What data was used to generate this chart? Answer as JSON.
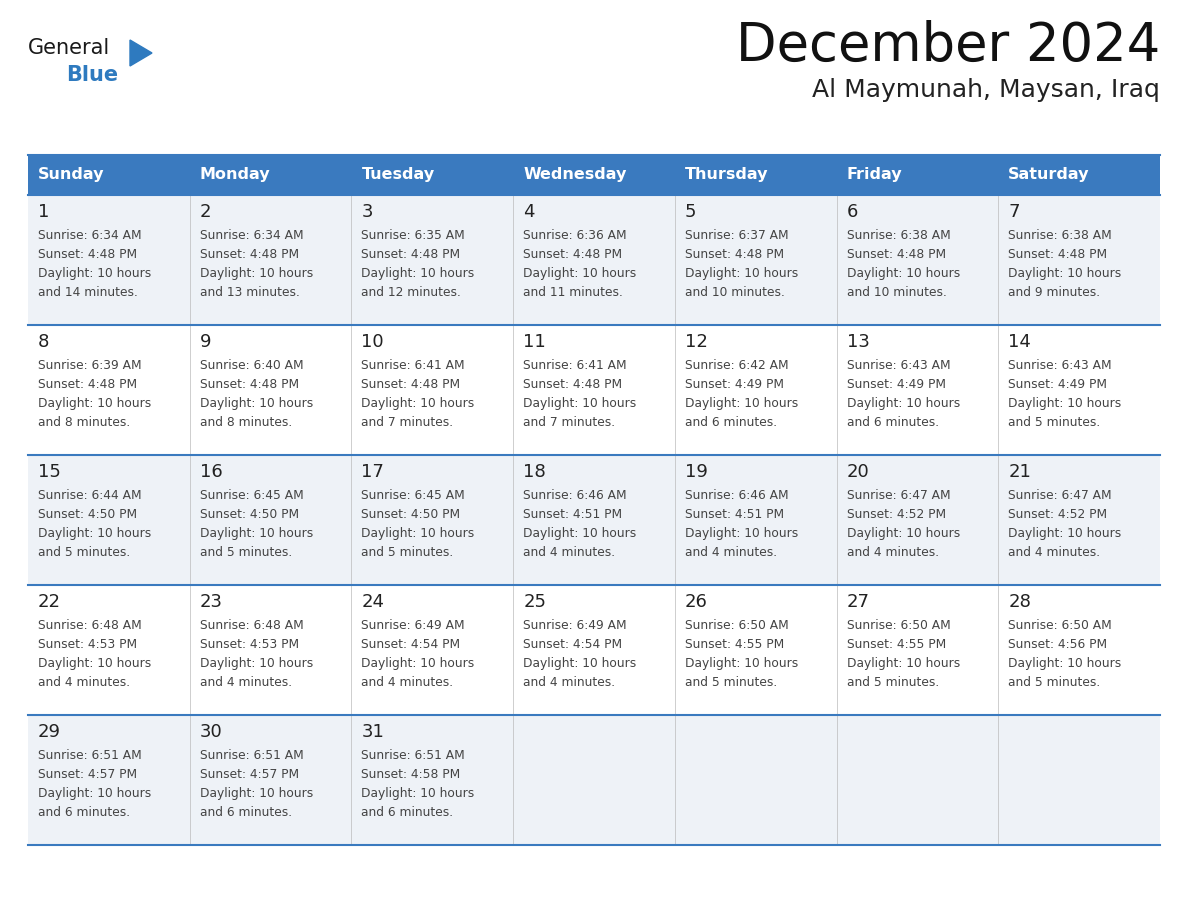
{
  "title": "December 2024",
  "subtitle": "Al Maymunah, Maysan, Iraq",
  "header_bg": "#3a7abf",
  "header_text": "#ffffff",
  "day_names": [
    "Sunday",
    "Monday",
    "Tuesday",
    "Wednesday",
    "Thursday",
    "Friday",
    "Saturday"
  ],
  "row_bg_odd": "#eef2f7",
  "row_bg_even": "#ffffff",
  "border_color": "#3a7abf",
  "text_color": "#444444",
  "date_color": "#222222",
  "logo_general_color": "#1a1a1a",
  "logo_blue_color": "#2e7abf",
  "weeks": [
    [
      {
        "day": 1,
        "sunrise": "6:34 AM",
        "sunset": "4:48 PM",
        "daylight": "10 hours and 14 minutes."
      },
      {
        "day": 2,
        "sunrise": "6:34 AM",
        "sunset": "4:48 PM",
        "daylight": "10 hours and 13 minutes."
      },
      {
        "day": 3,
        "sunrise": "6:35 AM",
        "sunset": "4:48 PM",
        "daylight": "10 hours and 12 minutes."
      },
      {
        "day": 4,
        "sunrise": "6:36 AM",
        "sunset": "4:48 PM",
        "daylight": "10 hours and 11 minutes."
      },
      {
        "day": 5,
        "sunrise": "6:37 AM",
        "sunset": "4:48 PM",
        "daylight": "10 hours and 10 minutes."
      },
      {
        "day": 6,
        "sunrise": "6:38 AM",
        "sunset": "4:48 PM",
        "daylight": "10 hours and 10 minutes."
      },
      {
        "day": 7,
        "sunrise": "6:38 AM",
        "sunset": "4:48 PM",
        "daylight": "10 hours and 9 minutes."
      }
    ],
    [
      {
        "day": 8,
        "sunrise": "6:39 AM",
        "sunset": "4:48 PM",
        "daylight": "10 hours and 8 minutes."
      },
      {
        "day": 9,
        "sunrise": "6:40 AM",
        "sunset": "4:48 PM",
        "daylight": "10 hours and 8 minutes."
      },
      {
        "day": 10,
        "sunrise": "6:41 AM",
        "sunset": "4:48 PM",
        "daylight": "10 hours and 7 minutes."
      },
      {
        "day": 11,
        "sunrise": "6:41 AM",
        "sunset": "4:48 PM",
        "daylight": "10 hours and 7 minutes."
      },
      {
        "day": 12,
        "sunrise": "6:42 AM",
        "sunset": "4:49 PM",
        "daylight": "10 hours and 6 minutes."
      },
      {
        "day": 13,
        "sunrise": "6:43 AM",
        "sunset": "4:49 PM",
        "daylight": "10 hours and 6 minutes."
      },
      {
        "day": 14,
        "sunrise": "6:43 AM",
        "sunset": "4:49 PM",
        "daylight": "10 hours and 5 minutes."
      }
    ],
    [
      {
        "day": 15,
        "sunrise": "6:44 AM",
        "sunset": "4:50 PM",
        "daylight": "10 hours and 5 minutes."
      },
      {
        "day": 16,
        "sunrise": "6:45 AM",
        "sunset": "4:50 PM",
        "daylight": "10 hours and 5 minutes."
      },
      {
        "day": 17,
        "sunrise": "6:45 AM",
        "sunset": "4:50 PM",
        "daylight": "10 hours and 5 minutes."
      },
      {
        "day": 18,
        "sunrise": "6:46 AM",
        "sunset": "4:51 PM",
        "daylight": "10 hours and 4 minutes."
      },
      {
        "day": 19,
        "sunrise": "6:46 AM",
        "sunset": "4:51 PM",
        "daylight": "10 hours and 4 minutes."
      },
      {
        "day": 20,
        "sunrise": "6:47 AM",
        "sunset": "4:52 PM",
        "daylight": "10 hours and 4 minutes."
      },
      {
        "day": 21,
        "sunrise": "6:47 AM",
        "sunset": "4:52 PM",
        "daylight": "10 hours and 4 minutes."
      }
    ],
    [
      {
        "day": 22,
        "sunrise": "6:48 AM",
        "sunset": "4:53 PM",
        "daylight": "10 hours and 4 minutes."
      },
      {
        "day": 23,
        "sunrise": "6:48 AM",
        "sunset": "4:53 PM",
        "daylight": "10 hours and 4 minutes."
      },
      {
        "day": 24,
        "sunrise": "6:49 AM",
        "sunset": "4:54 PM",
        "daylight": "10 hours and 4 minutes."
      },
      {
        "day": 25,
        "sunrise": "6:49 AM",
        "sunset": "4:54 PM",
        "daylight": "10 hours and 4 minutes."
      },
      {
        "day": 26,
        "sunrise": "6:50 AM",
        "sunset": "4:55 PM",
        "daylight": "10 hours and 5 minutes."
      },
      {
        "day": 27,
        "sunrise": "6:50 AM",
        "sunset": "4:55 PM",
        "daylight": "10 hours and 5 minutes."
      },
      {
        "day": 28,
        "sunrise": "6:50 AM",
        "sunset": "4:56 PM",
        "daylight": "10 hours and 5 minutes."
      }
    ],
    [
      {
        "day": 29,
        "sunrise": "6:51 AM",
        "sunset": "4:57 PM",
        "daylight": "10 hours and 6 minutes."
      },
      {
        "day": 30,
        "sunrise": "6:51 AM",
        "sunset": "4:57 PM",
        "daylight": "10 hours and 6 minutes."
      },
      {
        "day": 31,
        "sunrise": "6:51 AM",
        "sunset": "4:58 PM",
        "daylight": "10 hours and 6 minutes."
      },
      null,
      null,
      null,
      null
    ]
  ]
}
